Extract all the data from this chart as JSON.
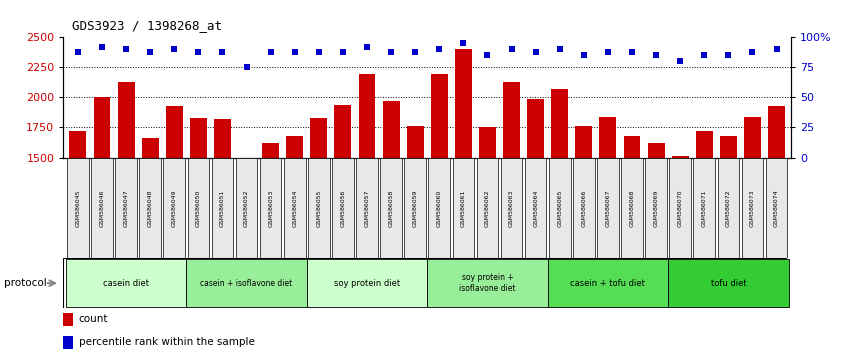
{
  "title": "GDS3923 / 1398268_at",
  "samples": [
    "GSM586045",
    "GSM586046",
    "GSM586047",
    "GSM586048",
    "GSM586049",
    "GSM586050",
    "GSM586051",
    "GSM586052",
    "GSM586053",
    "GSM586054",
    "GSM586055",
    "GSM586056",
    "GSM586057",
    "GSM586058",
    "GSM586059",
    "GSM586060",
    "GSM586061",
    "GSM586062",
    "GSM586063",
    "GSM586064",
    "GSM586065",
    "GSM586066",
    "GSM586067",
    "GSM586068",
    "GSM586069",
    "GSM586070",
    "GSM586071",
    "GSM586072",
    "GSM586073",
    "GSM586074"
  ],
  "counts": [
    1720,
    2000,
    2130,
    1660,
    1930,
    1830,
    1820,
    1490,
    1620,
    1680,
    1830,
    1940,
    2190,
    1970,
    1760,
    2190,
    2400,
    1750,
    2130,
    1990,
    2070,
    1760,
    1840,
    1680,
    1620,
    1510,
    1720,
    1680,
    1840,
    1930
  ],
  "percentile_ranks": [
    88,
    92,
    90,
    88,
    90,
    88,
    88,
    75,
    88,
    88,
    88,
    88,
    92,
    88,
    88,
    90,
    95,
    85,
    90,
    88,
    90,
    85,
    88,
    88,
    85,
    80,
    85,
    85,
    88,
    90
  ],
  "bar_color": "#cc0000",
  "dot_color": "#0000cc",
  "ylim_left": [
    1500,
    2500
  ],
  "ylim_right": [
    0,
    100
  ],
  "yticks_left": [
    1500,
    1750,
    2000,
    2250,
    2500
  ],
  "yticks_right": [
    0,
    25,
    50,
    75,
    100
  ],
  "ytick_labels_right": [
    "0",
    "25",
    "50",
    "75",
    "100%"
  ],
  "groups": [
    {
      "label": "casein diet",
      "start": 0,
      "end": 4,
      "color": "#ccffcc"
    },
    {
      "label": "casein + isoflavone diet",
      "start": 5,
      "end": 9,
      "color": "#99ee99"
    },
    {
      "label": "soy protein diet",
      "start": 10,
      "end": 14,
      "color": "#ccffcc"
    },
    {
      "label": "soy protein +\nisoflavone diet",
      "start": 15,
      "end": 19,
      "color": "#99ee99"
    },
    {
      "label": "casein + tofu diet",
      "start": 20,
      "end": 24,
      "color": "#55dd55"
    },
    {
      "label": "tofu diet",
      "start": 25,
      "end": 29,
      "color": "#33cc33"
    }
  ],
  "protocol_label": "protocol",
  "legend_count_label": "count",
  "legend_pct_label": "percentile rank within the sample",
  "bar_color_legend": "#cc0000",
  "dot_color_legend": "#0000cc",
  "tick_label_color_left": "#cc0000",
  "tick_label_color_right": "#0000cc"
}
